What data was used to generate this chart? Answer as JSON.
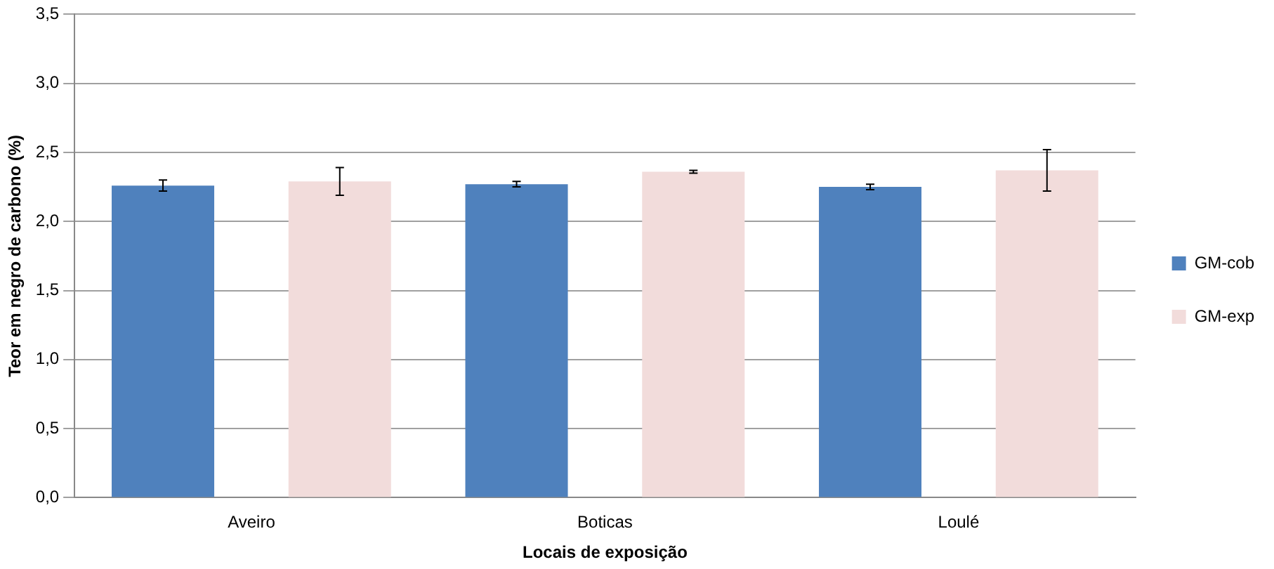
{
  "chart_data": {
    "type": "bar",
    "xlabel": "Locais de exposição",
    "ylabel": "Teor em negro de carbono (%)",
    "categories": [
      "Aveiro",
      "Boticas",
      "Loulé"
    ],
    "series": [
      {
        "name": "GM-cob",
        "color": "#4f81bd",
        "values": [
          2.26,
          2.27,
          2.25
        ],
        "errors": [
          0.04,
          0.02,
          0.02
        ]
      },
      {
        "name": "GM-exp",
        "color": "#f2dcdb",
        "values": [
          2.29,
          2.36,
          2.37
        ],
        "errors": [
          0.1,
          0.01,
          0.15
        ]
      }
    ],
    "ylim": [
      0,
      3.5
    ],
    "yticks": [
      {
        "value": 0,
        "label": "0,0"
      },
      {
        "value": 0.5,
        "label": "0,5"
      },
      {
        "value": 1,
        "label": "1,0"
      },
      {
        "value": 1.5,
        "label": "1,5"
      },
      {
        "value": 2,
        "label": "2,0"
      },
      {
        "value": 2.5,
        "label": "2,5"
      },
      {
        "value": 3,
        "label": "3,0"
      },
      {
        "value": 3.5,
        "label": "3,5"
      }
    ],
    "grid": "y",
    "legend": "right"
  }
}
